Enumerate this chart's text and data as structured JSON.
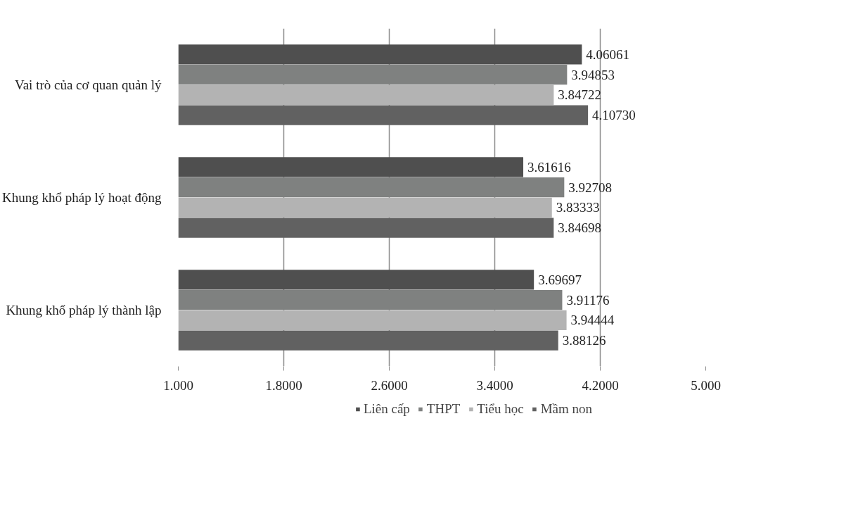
{
  "chart_data": {
    "type": "bar",
    "orientation": "horizontal",
    "categories": [
      "Vai trò của cơ quan quản lý",
      "Khung khổ pháp lý hoạt động",
      "Khung khổ pháp lý thành lập"
    ],
    "series": [
      {
        "name": "Liên cấp",
        "color": "#4f4f4f",
        "values": [
          4.06061,
          3.61616,
          3.69697
        ],
        "value_labels": [
          "4.06061",
          "3.61616",
          "3.69697"
        ]
      },
      {
        "name": "THPT",
        "color": "#7f8180",
        "values": [
          3.94853,
          3.92708,
          3.91176
        ],
        "value_labels": [
          "3.94853",
          "3.92708",
          "3.91176"
        ]
      },
      {
        "name": "Tiểu học",
        "color": "#b3b3b3",
        "values": [
          3.84722,
          3.83333,
          3.94444
        ],
        "value_labels": [
          "3.84722",
          "3.83333",
          "3.94444"
        ]
      },
      {
        "name": "Mầm non",
        "color": "#616161",
        "values": [
          4.1073,
          3.84698,
          3.88126
        ],
        "value_labels": [
          "4.10730",
          "3.84698",
          "3.88126"
        ]
      }
    ],
    "xlim": [
      1,
      5
    ],
    "xticks": [
      {
        "value": 1,
        "label": "1.000"
      },
      {
        "value": 1.8,
        "label": "1.8000"
      },
      {
        "value": 2.6,
        "label": "2.6000"
      },
      {
        "value": 3.4,
        "label": "3.4000"
      },
      {
        "value": 4.2,
        "label": "4.2000"
      },
      {
        "value": 5,
        "label": "5.000"
      }
    ],
    "grid": "x",
    "legend": "bottom"
  }
}
